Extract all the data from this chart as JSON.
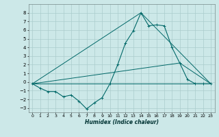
{
  "xlabel": "Humidex (Indice chaleur)",
  "background_color": "#cce8e8",
  "grid_color": "#aacccc",
  "line_color": "#006868",
  "xlim": [
    -0.5,
    23.5
  ],
  "ylim": [
    -3.5,
    9.0
  ],
  "xticks": [
    0,
    1,
    2,
    3,
    4,
    5,
    6,
    7,
    8,
    9,
    10,
    11,
    12,
    13,
    14,
    15,
    16,
    17,
    18,
    19,
    20,
    21,
    22,
    23
  ],
  "yticks": [
    -3,
    -2,
    -1,
    0,
    1,
    2,
    3,
    4,
    5,
    6,
    7,
    8
  ],
  "main_series": {
    "x": [
      0,
      1,
      2,
      3,
      4,
      5,
      6,
      7,
      8,
      9,
      10,
      11,
      12,
      13,
      14,
      15,
      16,
      17,
      18,
      19,
      20,
      21,
      22,
      23
    ],
    "y": [
      -0.2,
      -0.7,
      -1.1,
      -1.1,
      -1.7,
      -1.5,
      -2.2,
      -3.1,
      -2.4,
      -1.8,
      -0.2,
      2.0,
      4.5,
      5.9,
      8.0,
      6.5,
      6.6,
      6.5,
      4.0,
      2.2,
      0.3,
      -0.2,
      -0.2,
      -0.2
    ]
  },
  "straight_lines": [
    {
      "x": [
        0,
        23
      ],
      "y": [
        -0.2,
        -0.2
      ]
    },
    {
      "x": [
        0,
        14,
        23
      ],
      "y": [
        -0.2,
        8.0,
        -0.2
      ]
    },
    {
      "x": [
        0,
        19,
        23
      ],
      "y": [
        -0.2,
        2.2,
        -0.2
      ]
    }
  ]
}
